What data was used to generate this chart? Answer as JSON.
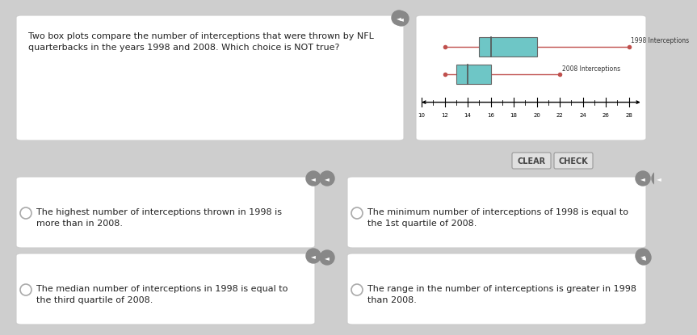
{
  "title_line1": "Two box plots compare the number of interceptions that were thrown by NFL",
  "title_line2": "quarterbacks in the years 1998 and 2008. Which choice is NOT true?",
  "bg_color": "#cecece",
  "panel_color": "#ffffff",
  "panel_border": "#cccccc",
  "box1998": {
    "min": 12,
    "q1": 15,
    "median": 16,
    "q3": 20,
    "max": 28,
    "label": "1998 Interceptions",
    "box_color": "#6ec6c6",
    "whisker_color": "#c0504d",
    "dot_color": "#c0504d"
  },
  "box2008": {
    "min": 12,
    "q1": 13,
    "median": 14,
    "q3": 16,
    "max": 22,
    "label": "2008 Interceptions",
    "box_color": "#6ec6c6",
    "whisker_color": "#c0504d",
    "dot_color": "#c0504d"
  },
  "axis_min": 10,
  "axis_max": 28,
  "axis_ticks": [
    10,
    12,
    14,
    16,
    18,
    20,
    22,
    24,
    26,
    28
  ],
  "choices": [
    [
      "The highest number of interceptions thrown in 1998 is",
      "more than in 2008."
    ],
    [
      "The minimum number of interceptions of 1998 is equal to",
      "the 1st quartile of 2008."
    ],
    [
      "The median number of interceptions in 1998 is equal to",
      "the third quartile of 2008."
    ],
    [
      "The range in the number of interceptions is greater in 1998",
      "than 2008."
    ]
  ],
  "button_clear": "CLEAR",
  "button_check": "CHECK",
  "speaker_color": "#888888",
  "radio_color": "#aaaaaa"
}
